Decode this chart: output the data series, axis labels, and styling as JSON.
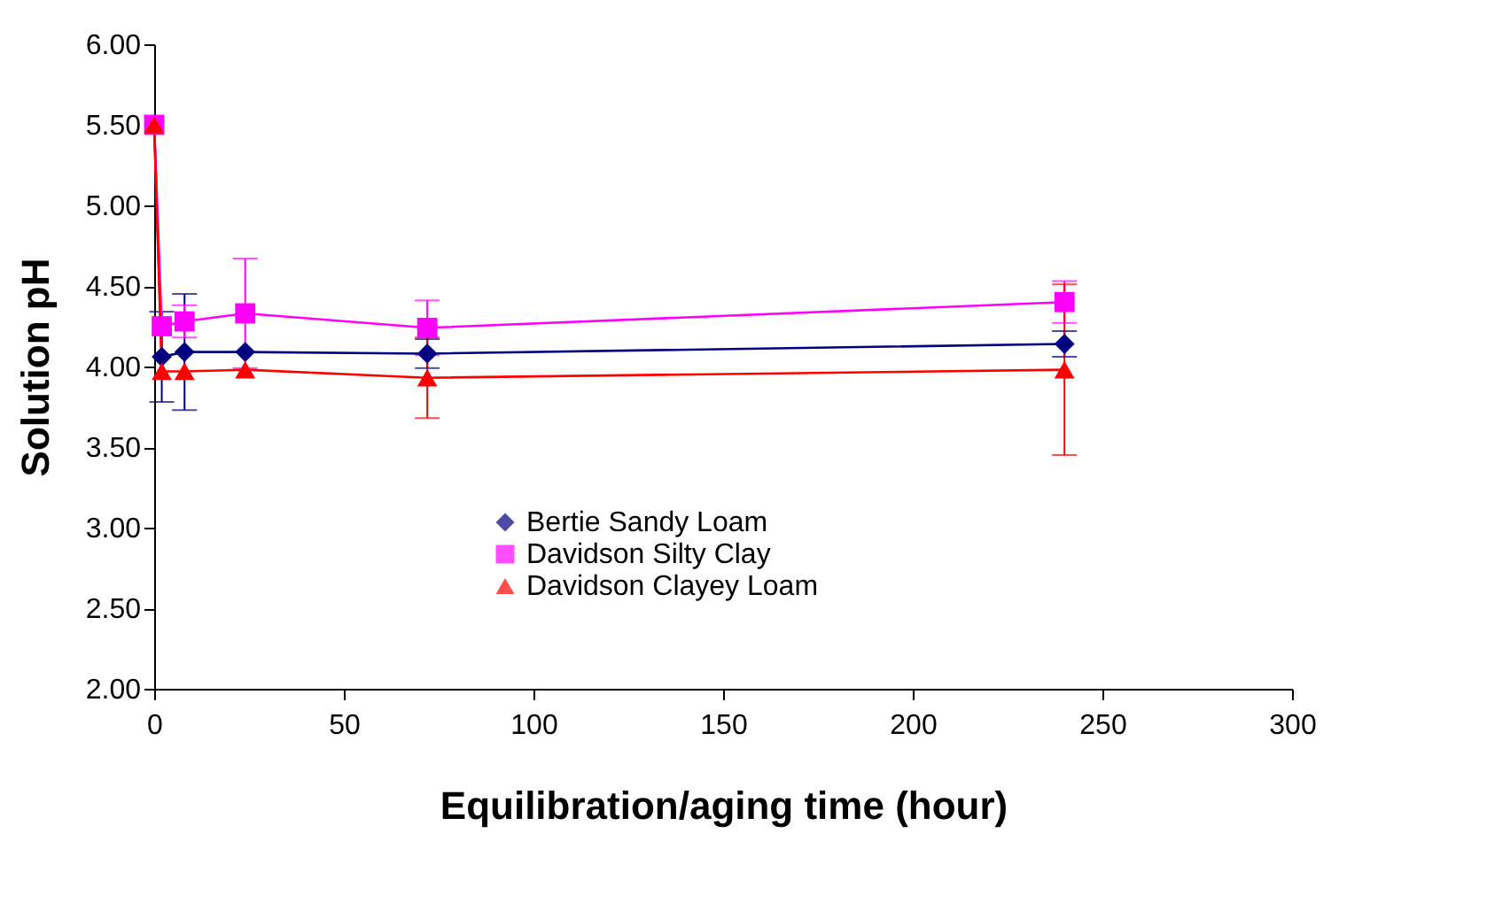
{
  "chart_data": {
    "type": "line",
    "xlabel": "Equilibration/aging time (hour)",
    "ylabel": "Solution pH",
    "x": [
      0,
      2,
      8,
      24,
      72,
      240
    ],
    "series": [
      {
        "name": "Bertie Sandy Loam",
        "color": "#000080",
        "marker": "diamond",
        "values": [
          5.5,
          4.06,
          4.09,
          4.09,
          4.08,
          4.14
        ],
        "errors": [
          null,
          0.28,
          0.36,
          null,
          0.09,
          0.08
        ]
      },
      {
        "name": "Davidson Silty Clay",
        "color": "#ff00ff",
        "marker": "square",
        "values": [
          5.5,
          4.25,
          4.28,
          4.33,
          4.24,
          4.4
        ],
        "errors": [
          null,
          null,
          0.1,
          0.34,
          0.17,
          0.13
        ]
      },
      {
        "name": "Davidson Clayey Loam",
        "color": "#ff0000",
        "marker": "triangle",
        "values": [
          5.5,
          3.97,
          3.97,
          3.98,
          3.93,
          3.98
        ],
        "errors": [
          null,
          null,
          null,
          null,
          0.25,
          0.53
        ]
      }
    ],
    "xlim": [
      0,
      300
    ],
    "xticks": [
      0,
      50,
      100,
      150,
      200,
      250,
      300
    ],
    "ylim": [
      2,
      6
    ],
    "yticks": [
      {
        "value": 2,
        "label": "2.00"
      },
      {
        "value": 2.5,
        "label": "2.50"
      },
      {
        "value": 3,
        "label": "3.00"
      },
      {
        "value": 3.5,
        "label": "3.50"
      },
      {
        "value": 4,
        "label": "4.00"
      },
      {
        "value": 4.5,
        "label": "4.50"
      },
      {
        "value": 5,
        "label": "5.00"
      },
      {
        "value": 5.5,
        "label": "5.50"
      },
      {
        "value": 6,
        "label": "6.00"
      }
    ],
    "grid": false,
    "legend": "bottom",
    "line_style": "solid"
  }
}
